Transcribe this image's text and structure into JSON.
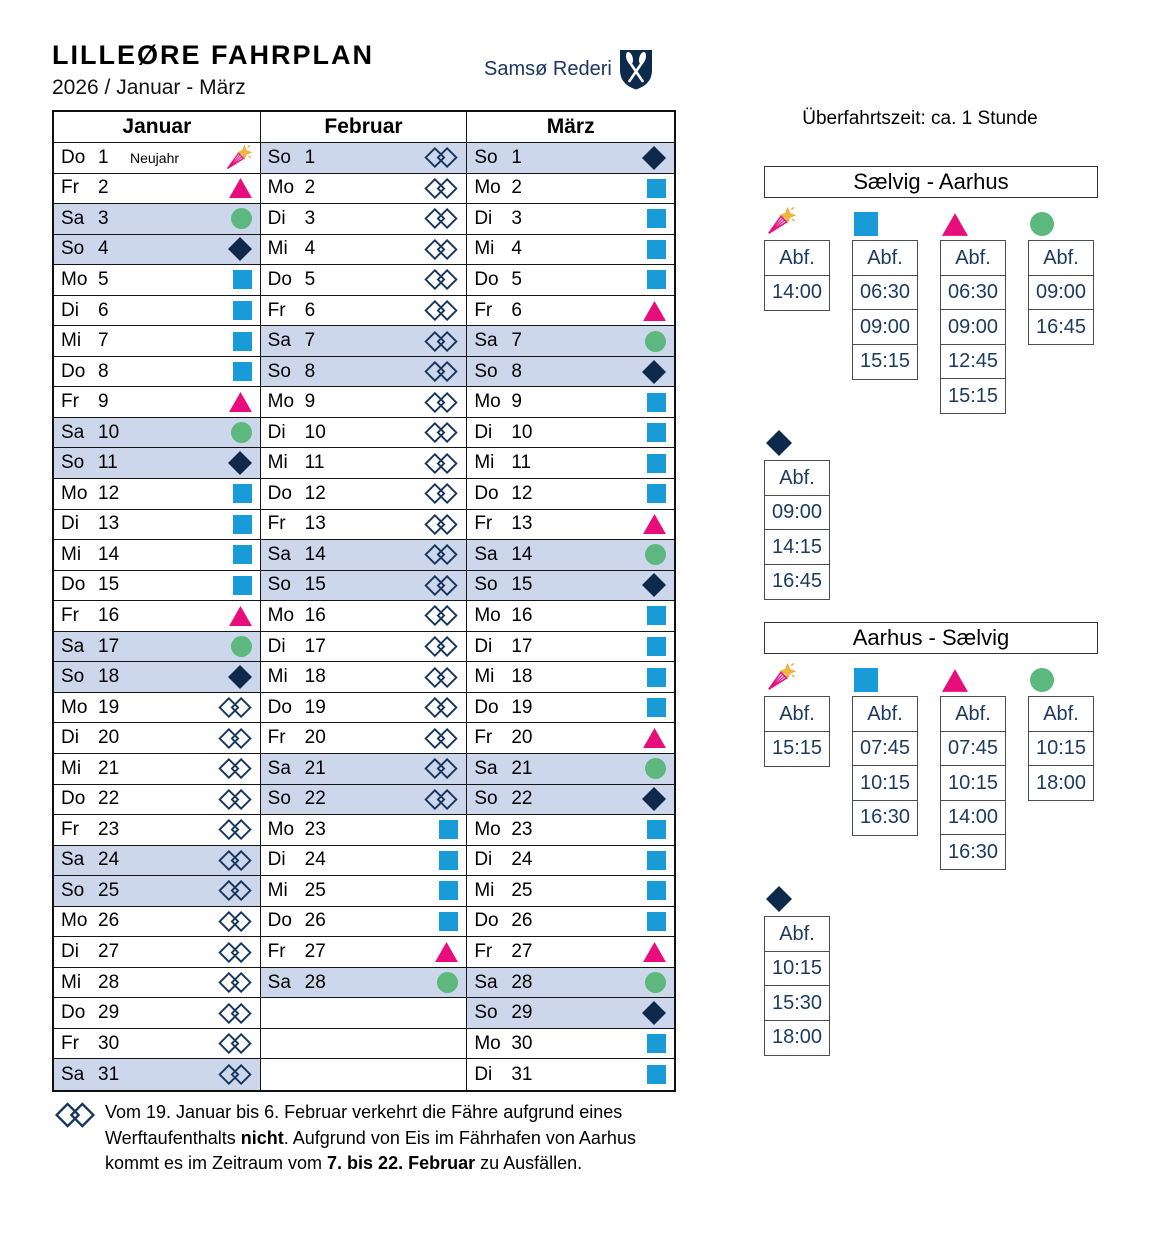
{
  "header": {
    "title": "LILLEØRE FAHRPLAN",
    "subtitle": "2026 / Januar - März",
    "brand": "Samsø Rederi"
  },
  "right_panel": {
    "crossing_time": "Überfahrtszeit: ca. 1 Stunde",
    "routes": [
      {
        "title": "Sælvig - Aarhus",
        "columns": [
          {
            "symbol": "firework",
            "header": "Abf.",
            "times": [
              "14:00"
            ]
          },
          {
            "symbol": "square",
            "header": "Abf.",
            "times": [
              "06:30",
              "09:00",
              "15:15"
            ]
          },
          {
            "symbol": "triangle",
            "header": "Abf.",
            "times": [
              "06:30",
              "09:00",
              "12:45",
              "15:15"
            ]
          },
          {
            "symbol": "circle",
            "header": "Abf.",
            "times": [
              "09:00",
              "16:45"
            ]
          }
        ],
        "extra_column": {
          "symbol": "diamond",
          "header": "Abf.",
          "times": [
            "09:00",
            "14:15",
            "16:45"
          ]
        }
      },
      {
        "title": "Aarhus - Sælvig",
        "columns": [
          {
            "symbol": "firework",
            "header": "Abf.",
            "times": [
              "15:15"
            ]
          },
          {
            "symbol": "square",
            "header": "Abf.",
            "times": [
              "07:45",
              "10:15",
              "16:30"
            ]
          },
          {
            "symbol": "triangle",
            "header": "Abf.",
            "times": [
              "07:45",
              "10:15",
              "14:00",
              "16:30"
            ]
          },
          {
            "symbol": "circle",
            "header": "Abf.",
            "times": [
              "10:15",
              "18:00"
            ]
          }
        ],
        "extra_column": {
          "symbol": "diamond",
          "header": "Abf.",
          "times": [
            "10:15",
            "15:30",
            "18:00"
          ]
        }
      }
    ]
  },
  "calendar": {
    "months": [
      {
        "name": "Januar",
        "days": [
          [
            "Do",
            1,
            "firework",
            "Neujahr"
          ],
          [
            "Fr",
            2,
            "triangle"
          ],
          [
            "Sa",
            3,
            "circle"
          ],
          [
            "So",
            4,
            "diamond"
          ],
          [
            "Mo",
            5,
            "square"
          ],
          [
            "Di",
            6,
            "square"
          ],
          [
            "Mi",
            7,
            "square"
          ],
          [
            "Do",
            8,
            "square"
          ],
          [
            "Fr",
            9,
            "triangle"
          ],
          [
            "Sa",
            10,
            "circle"
          ],
          [
            "So",
            11,
            "diamond"
          ],
          [
            "Mo",
            12,
            "square"
          ],
          [
            "Di",
            13,
            "square"
          ],
          [
            "Mi",
            14,
            "square"
          ],
          [
            "Do",
            15,
            "square"
          ],
          [
            "Fr",
            16,
            "triangle"
          ],
          [
            "Sa",
            17,
            "circle"
          ],
          [
            "So",
            18,
            "diamond"
          ],
          [
            "Mo",
            19,
            "crossed"
          ],
          [
            "Di",
            20,
            "crossed"
          ],
          [
            "Mi",
            21,
            "crossed"
          ],
          [
            "Do",
            22,
            "crossed"
          ],
          [
            "Fr",
            23,
            "crossed"
          ],
          [
            "Sa",
            24,
            "crossed"
          ],
          [
            "So",
            25,
            "crossed"
          ],
          [
            "Mo",
            26,
            "crossed"
          ],
          [
            "Di",
            27,
            "crossed"
          ],
          [
            "Mi",
            28,
            "crossed"
          ],
          [
            "Do",
            29,
            "crossed"
          ],
          [
            "Fr",
            30,
            "crossed"
          ],
          [
            "Sa",
            31,
            "crossed"
          ]
        ]
      },
      {
        "name": "Februar",
        "days": [
          [
            "So",
            1,
            "crossed"
          ],
          [
            "Mo",
            2,
            "crossed"
          ],
          [
            "Di",
            3,
            "crossed"
          ],
          [
            "Mi",
            4,
            "crossed"
          ],
          [
            "Do",
            5,
            "crossed"
          ],
          [
            "Fr",
            6,
            "crossed"
          ],
          [
            "Sa",
            7,
            "crossed"
          ],
          [
            "So",
            8,
            "crossed"
          ],
          [
            "Mo",
            9,
            "crossed"
          ],
          [
            "Di",
            10,
            "crossed"
          ],
          [
            "Mi",
            11,
            "crossed"
          ],
          [
            "Do",
            12,
            "crossed"
          ],
          [
            "Fr",
            13,
            "crossed"
          ],
          [
            "Sa",
            14,
            "crossed"
          ],
          [
            "So",
            15,
            "crossed"
          ],
          [
            "Mo",
            16,
            "crossed"
          ],
          [
            "Di",
            17,
            "crossed"
          ],
          [
            "Mi",
            18,
            "crossed"
          ],
          [
            "Do",
            19,
            "crossed"
          ],
          [
            "Fr",
            20,
            "crossed"
          ],
          [
            "Sa",
            21,
            "crossed"
          ],
          [
            "So",
            22,
            "crossed"
          ],
          [
            "Mo",
            23,
            "square"
          ],
          [
            "Di",
            24,
            "square"
          ],
          [
            "Mi",
            25,
            "square"
          ],
          [
            "Do",
            26,
            "square"
          ],
          [
            "Fr",
            27,
            "triangle"
          ],
          [
            "Sa",
            28,
            "circle"
          ]
        ]
      },
      {
        "name": "März",
        "days": [
          [
            "So",
            1,
            "diamond"
          ],
          [
            "Mo",
            2,
            "square"
          ],
          [
            "Di",
            3,
            "square"
          ],
          [
            "Mi",
            4,
            "square"
          ],
          [
            "Do",
            5,
            "square"
          ],
          [
            "Fr",
            6,
            "triangle"
          ],
          [
            "Sa",
            7,
            "circle"
          ],
          [
            "So",
            8,
            "diamond"
          ],
          [
            "Mo",
            9,
            "square"
          ],
          [
            "Di",
            10,
            "square"
          ],
          [
            "Mi",
            11,
            "square"
          ],
          [
            "Do",
            12,
            "square"
          ],
          [
            "Fr",
            13,
            "triangle"
          ],
          [
            "Sa",
            14,
            "circle"
          ],
          [
            "So",
            15,
            "diamond"
          ],
          [
            "Mo",
            16,
            "square"
          ],
          [
            "Di",
            17,
            "square"
          ],
          [
            "Mi",
            18,
            "square"
          ],
          [
            "Do",
            19,
            "square"
          ],
          [
            "Fr",
            20,
            "triangle"
          ],
          [
            "Sa",
            21,
            "circle"
          ],
          [
            "So",
            22,
            "diamond"
          ],
          [
            "Mo",
            23,
            "square"
          ],
          [
            "Di",
            24,
            "square"
          ],
          [
            "Mi",
            25,
            "square"
          ],
          [
            "Do",
            26,
            "square"
          ],
          [
            "Fr",
            27,
            "triangle"
          ],
          [
            "Sa",
            28,
            "circle"
          ],
          [
            "So",
            29,
            "diamond"
          ],
          [
            "Mo",
            30,
            "square"
          ],
          [
            "Di",
            31,
            "square"
          ]
        ]
      }
    ]
  },
  "note": {
    "part1": "Vom 19. Januar bis 6. Februar verkehrt die Fähre aufgrund eines Werftaufenthalts ",
    "bold1": "nicht",
    "part2": ". Aufgrund von Eis im Fährhafen von Aarhus kommt es im Zeitraum vom ",
    "bold2": "7. bis 22. Februar",
    "part3": " zu Ausfällen."
  },
  "icons": {
    "firework": "party-popper-icon",
    "square": "weekday-square-icon",
    "triangle": "friday-triangle-icon",
    "circle": "saturday-circle-icon",
    "diamond": "sunday-diamond-icon",
    "crossed": "no-service-icon",
    "logo": "shield-crossed-oars-icon"
  },
  "colors": {
    "square": "#189bd7",
    "triangle": "#e80d7d",
    "circle": "#5cb87c",
    "diamond": "#0d2a4c",
    "crossed": "#16365f",
    "weekend_row": "#ccd7ec",
    "navy_text": "#1c3a5e",
    "brand_navy": "#1b3660",
    "firework_star": "#f4b73a"
  }
}
